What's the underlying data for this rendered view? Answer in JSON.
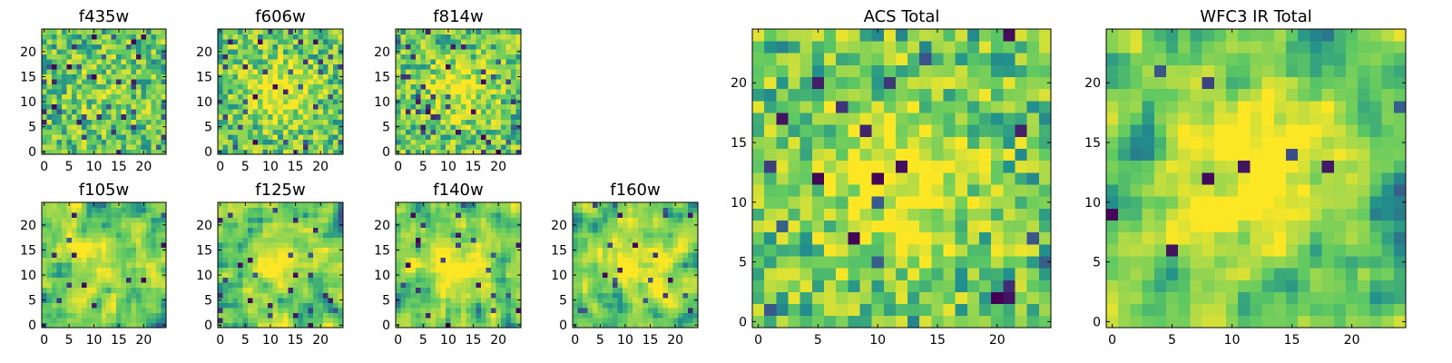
{
  "chart_data": {
    "type": "heatmap",
    "colormap": [
      "#440154",
      "#3b528b",
      "#21918c",
      "#5ec962",
      "#a8d94a",
      "#fde725"
    ],
    "panels": [
      {
        "id": "f435w",
        "title": "f435w",
        "grid": 25,
        "seed": 11,
        "smooth": 0,
        "center_boost": 0.1,
        "dark_prob": 0.07,
        "xticks": [
          0,
          5,
          10,
          15,
          20
        ],
        "yticks": [
          0,
          5,
          10,
          15,
          20
        ],
        "xlim": [
          0,
          24
        ],
        "ylim": [
          0,
          24
        ]
      },
      {
        "id": "f606w",
        "title": "f606w",
        "grid": 25,
        "seed": 23,
        "smooth": 0,
        "center_boost": 0.35,
        "dark_prob": 0.05,
        "xticks": [
          0,
          5,
          10,
          15,
          20
        ],
        "yticks": [
          0,
          5,
          10,
          15,
          20
        ],
        "xlim": [
          0,
          24
        ],
        "ylim": [
          0,
          24
        ]
      },
      {
        "id": "f814w",
        "title": "f814w",
        "grid": 25,
        "seed": 37,
        "smooth": 0,
        "center_boost": 0.3,
        "dark_prob": 0.06,
        "xticks": [
          0,
          5,
          10,
          15,
          20
        ],
        "yticks": [
          0,
          5,
          10,
          15,
          20
        ],
        "xlim": [
          0,
          24
        ],
        "ylim": [
          0,
          24
        ]
      },
      {
        "id": "f105w",
        "title": "f105w",
        "grid": 25,
        "seed": 41,
        "smooth": 1,
        "center_boost": 0.25,
        "dark_prob": 0.03,
        "xticks": [
          0,
          5,
          10,
          15,
          20
        ],
        "yticks": [
          0,
          5,
          10,
          15,
          20
        ],
        "xlim": [
          0,
          24
        ],
        "ylim": [
          0,
          24
        ]
      },
      {
        "id": "f125w",
        "title": "f125w",
        "grid": 25,
        "seed": 53,
        "smooth": 1,
        "center_boost": 0.3,
        "dark_prob": 0.03,
        "xticks": [
          0,
          5,
          10,
          15,
          20
        ],
        "yticks": [
          0,
          5,
          10,
          15,
          20
        ],
        "xlim": [
          0,
          24
        ],
        "ylim": [
          0,
          24
        ]
      },
      {
        "id": "f140w",
        "title": "f140w",
        "grid": 25,
        "seed": 67,
        "smooth": 1,
        "center_boost": 0.35,
        "dark_prob": 0.03,
        "xticks": [
          0,
          5,
          10,
          15,
          20
        ],
        "yticks": [
          0,
          5,
          10,
          15,
          20
        ],
        "xlim": [
          0,
          24
        ],
        "ylim": [
          0,
          24
        ]
      },
      {
        "id": "f160w",
        "title": "f160w",
        "grid": 25,
        "seed": 79,
        "smooth": 1,
        "center_boost": 0.4,
        "dark_prob": 0.03,
        "xticks": [
          0,
          5,
          10,
          15,
          20
        ],
        "yticks": [
          0,
          5,
          10,
          15,
          20
        ],
        "xlim": [
          0,
          24
        ],
        "ylim": [
          0,
          24
        ]
      },
      {
        "id": "acs-total",
        "title": "ACS Total",
        "grid": 25,
        "seed": 97,
        "smooth": 0,
        "center_boost": 0.4,
        "dark_prob": 0.04,
        "xticks": [
          0,
          5,
          10,
          15,
          20
        ],
        "yticks": [
          0,
          5,
          10,
          15,
          20
        ],
        "xlim": [
          0,
          24
        ],
        "ylim": [
          0,
          24
        ]
      },
      {
        "id": "wfc3-ir-total",
        "title": "WFC3 IR Total",
        "grid": 25,
        "seed": 113,
        "smooth": 1,
        "center_boost": 0.5,
        "dark_prob": 0.02,
        "xticks": [
          0,
          5,
          10,
          15,
          20
        ],
        "yticks": [
          0,
          5,
          10,
          15,
          20
        ],
        "xlim": [
          0,
          24
        ],
        "ylim": [
          0,
          24
        ]
      }
    ]
  }
}
